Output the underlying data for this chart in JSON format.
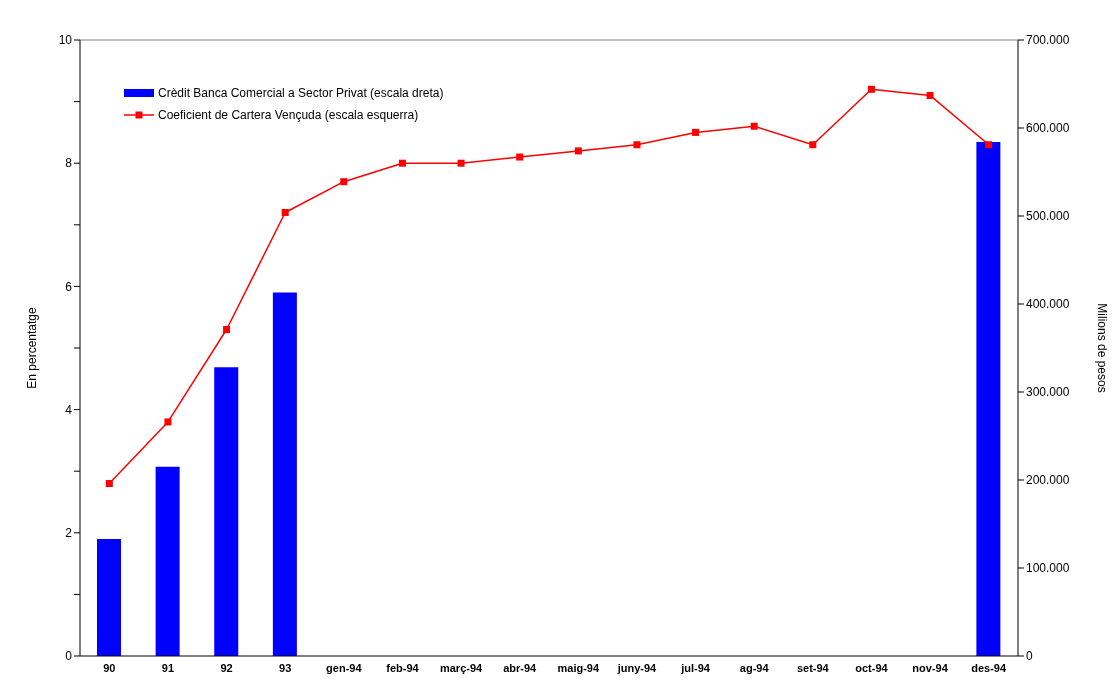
{
  "chart_data": {
    "type": "bar",
    "categories": [
      "90",
      "91",
      "92",
      "93",
      "gen-94",
      "feb-94",
      "març-94",
      "abr-94",
      "maig-94",
      "juny-94",
      "jul-94",
      "ag-94",
      "set-94",
      "oct-94",
      "nov-94",
      "des-94"
    ],
    "series": [
      {
        "name": "Crèdit Banca Comercial a Sector Privat (escala dreta)",
        "axis": "y2",
        "color": "#0000ff",
        "values": [
          133000,
          215000,
          328000,
          413000,
          null,
          null,
          null,
          null,
          null,
          null,
          null,
          null,
          null,
          null,
          null,
          584000
        ]
      },
      {
        "name": "Coeficient de Cartera Vençuda (escala esquerra)",
        "type": "line",
        "axis": "y",
        "color": "#ff0000",
        "marker": "square",
        "line_style": "solid",
        "values": [
          2.8,
          3.8,
          5.3,
          7.2,
          7.7,
          8.0,
          8.0,
          8.1,
          8.2,
          8.3,
          8.5,
          8.6,
          8.3,
          9.2,
          9.1,
          8.3
        ]
      }
    ],
    "ylabel": "En percentatge",
    "y2label": "Milions de pesos",
    "ylim": [
      0,
      10
    ],
    "yticks": [
      0,
      {
        "value": 1,
        "label": null
      },
      2,
      {
        "value": 3,
        "label": null
      },
      4,
      {
        "value": 5,
        "label": null
      },
      6,
      {
        "value": 7,
        "label": null
      },
      8,
      {
        "value": 9,
        "label": null
      },
      10
    ],
    "y2lim": [
      0,
      700000
    ],
    "y2ticks": [
      0,
      {
        "value": 100000,
        "label": "100.000"
      },
      {
        "value": 200000,
        "label": "200.000"
      },
      {
        "value": 300000,
        "label": "300.000"
      },
      {
        "value": 400000,
        "label": "400.000"
      },
      {
        "value": 500000,
        "label": "500.000"
      },
      {
        "value": 600000,
        "label": "600.000"
      },
      {
        "value": 700000,
        "label": "700.000"
      }
    ],
    "grid": false,
    "legend": "top left"
  }
}
